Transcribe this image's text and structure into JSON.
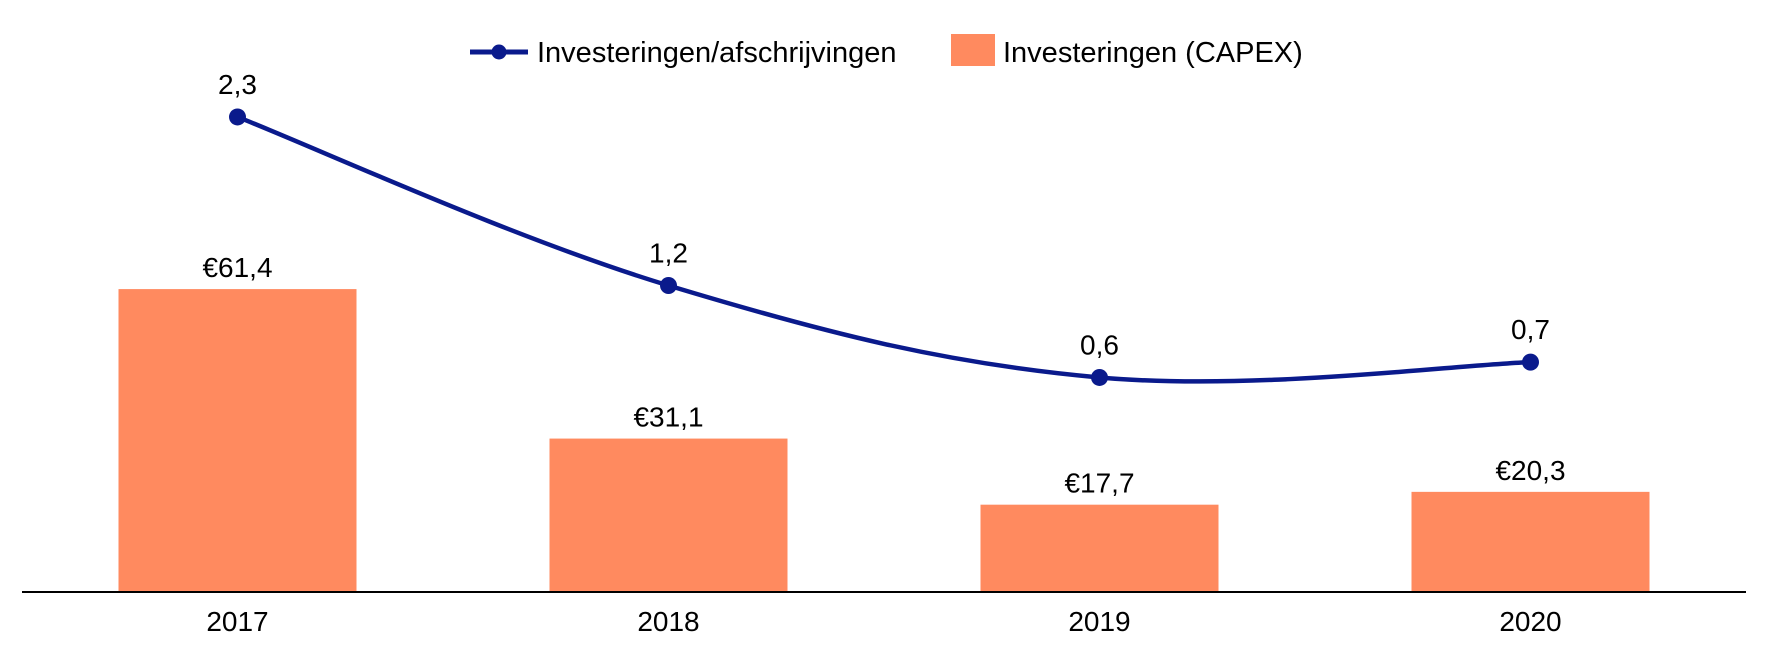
{
  "chart_data": {
    "type": "bar",
    "categories": [
      "2017",
      "2018",
      "2019",
      "2020"
    ],
    "series": [
      {
        "name": "Investeringen (CAPEX)",
        "type": "bar",
        "axis": "left",
        "values": [
          61.4,
          31.1,
          17.7,
          20.3
        ],
        "labels": [
          "€61,4",
          "€31,1",
          "€17,7",
          "€20,3"
        ],
        "color": "#ff8a5f"
      },
      {
        "name": "Investeringen/afschrijvingen",
        "type": "line",
        "axis": "right",
        "smooth": true,
        "values": [
          2.3,
          1.2,
          0.6,
          0.7
        ],
        "labels": [
          "2,3",
          "1,2",
          "0,6",
          "0,7"
        ],
        "color": "#0a1a8c"
      }
    ],
    "ylim_left": [
      0,
      120
    ],
    "ylim_right": [
      -0.8,
      2.9
    ],
    "grid": false,
    "legend_position": "top-center"
  }
}
